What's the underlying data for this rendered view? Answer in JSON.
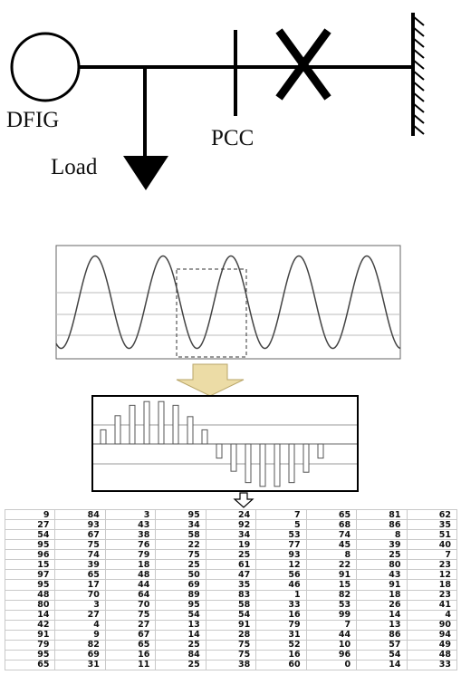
{
  "labels": {
    "generator": "DFIG",
    "pcc": "PCC",
    "load": "Load"
  },
  "table": {
    "rows": [
      [
        9,
        84,
        3,
        95,
        24,
        7,
        65,
        81,
        62
      ],
      [
        27,
        93,
        43,
        34,
        92,
        5,
        68,
        86,
        35
      ],
      [
        54,
        67,
        38,
        58,
        34,
        53,
        74,
        8,
        51
      ],
      [
        95,
        75,
        76,
        22,
        19,
        77,
        45,
        39,
        40
      ],
      [
        96,
        74,
        79,
        75,
        25,
        93,
        8,
        25,
        7
      ],
      [
        15,
        39,
        18,
        25,
        61,
        12,
        22,
        80,
        23
      ],
      [
        97,
        65,
        48,
        50,
        47,
        56,
        91,
        43,
        12
      ],
      [
        95,
        17,
        44,
        69,
        35,
        46,
        15,
        91,
        18
      ],
      [
        48,
        70,
        64,
        89,
        83,
        1,
        82,
        18,
        23
      ],
      [
        80,
        3,
        70,
        95,
        58,
        33,
        53,
        26,
        41
      ],
      [
        14,
        27,
        75,
        54,
        54,
        16,
        99,
        14,
        4
      ],
      [
        42,
        4,
        27,
        13,
        91,
        79,
        7,
        13,
        90
      ],
      [
        91,
        9,
        67,
        14,
        28,
        31,
        44,
        86,
        94
      ],
      [
        79,
        82,
        65,
        25,
        75,
        52,
        10,
        57,
        49
      ],
      [
        95,
        69,
        16,
        84,
        75,
        16,
        96,
        54,
        48
      ],
      [
        65,
        31,
        11,
        25,
        38,
        60,
        0,
        14,
        33
      ]
    ]
  },
  "bars": [
    {
      "v": 0.3
    },
    {
      "v": 0.6
    },
    {
      "v": 0.82
    },
    {
      "v": 0.9
    },
    {
      "v": 0.9
    },
    {
      "v": 0.82
    },
    {
      "v": 0.58
    },
    {
      "v": 0.3
    },
    {
      "v": -0.3
    },
    {
      "v": -0.58
    },
    {
      "v": -0.82
    },
    {
      "v": -0.9
    },
    {
      "v": -0.9
    },
    {
      "v": -0.82
    },
    {
      "v": -0.6
    },
    {
      "v": -0.3
    }
  ]
}
